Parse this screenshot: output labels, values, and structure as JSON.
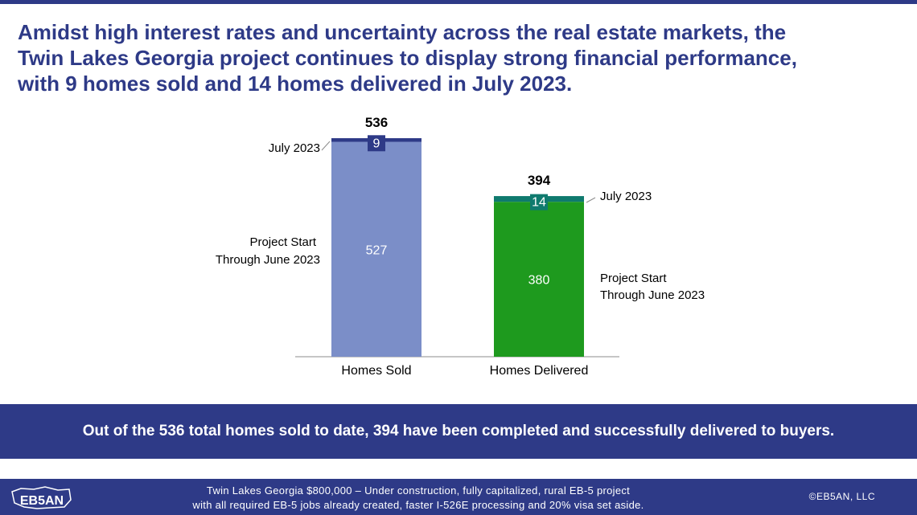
{
  "headline": [
    "Amidst high interest rates and uncertainty across the real estate markets, the",
    "Twin Lakes Georgia project continues to display strong financial performance,",
    "with 9 homes sold and 14 homes delivered in July 2023."
  ],
  "chart_data": {
    "type": "bar",
    "stacked": true,
    "categories": [
      "Homes Sold",
      "Homes Delivered"
    ],
    "series": [
      {
        "name": "Project Start Through June 2023",
        "values": [
          527,
          380
        ]
      },
      {
        "name": "July 2023",
        "values": [
          9,
          14
        ]
      }
    ],
    "totals": [
      536,
      394
    ],
    "ylim": [
      0,
      536
    ],
    "grid": false,
    "colors": {
      "sold_base": "#7b8ec8",
      "sold_july": "#2e3a87",
      "delivered_base": "#1e9a1e",
      "delivered_july": "#0f7a6e"
    },
    "annotations": {
      "sold_base_label": [
        "Project Start",
        "Through June 2023"
      ],
      "sold_july_label": "July 2023",
      "delivered_base_label": [
        "Project Start",
        "Through June 2023"
      ],
      "delivered_july_label": "July 2023"
    }
  },
  "banner": "Out of the 536 total homes sold to date, 394 have been completed and successfully delivered to buyers.",
  "footer": {
    "logo_text": "EB5AN",
    "description": [
      "Twin Lakes Georgia $800,000 – Under construction, fully capitalized, rural EB-5 project",
      "with all required EB-5 jobs already created, faster I-526E processing and 20% visa set aside."
    ],
    "copyright": "©EB5AN, LLC"
  }
}
